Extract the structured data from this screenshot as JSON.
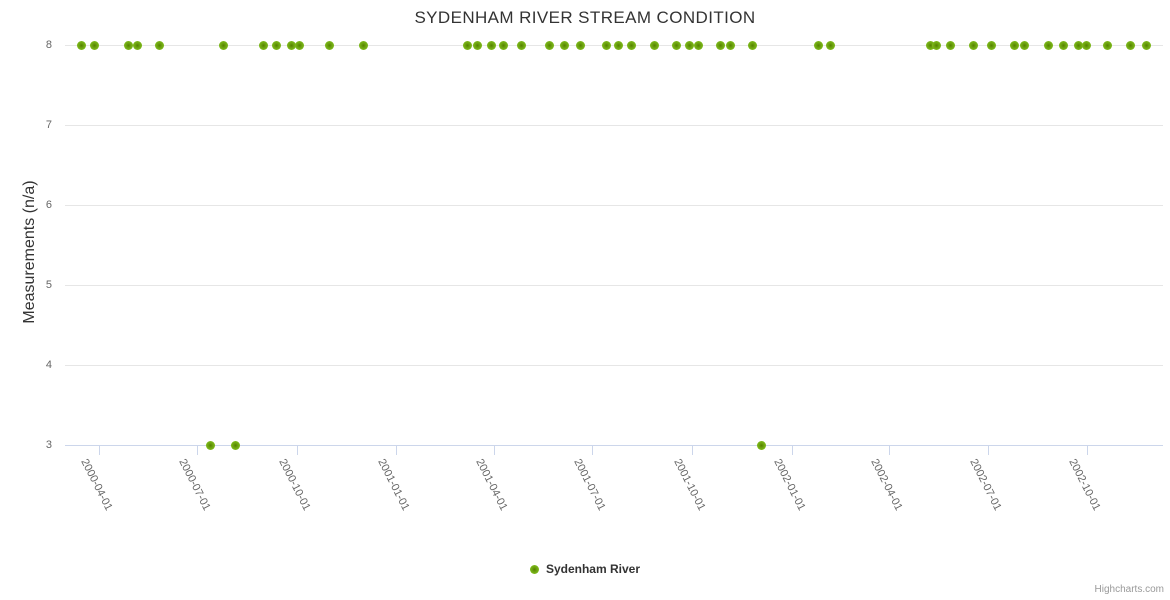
{
  "header": {
    "title": "SYDENHAM RIVER STREAM CONDITION"
  },
  "credit": {
    "label": "Highcharts.com"
  },
  "legend": {
    "items": [
      {
        "label": "Sydenham River"
      }
    ]
  },
  "colors": {
    "point_fill": "#7cb51e",
    "point_core": "#557f00",
    "gridline": "#e6e6e6",
    "axis_line": "#ccd6eb",
    "title_text": "#333333",
    "axis_label_text": "#666666",
    "legend_text": "#333333",
    "credit_text": "#999999"
  },
  "chart_data": {
    "type": "scatter",
    "title": "SYDENHAM RIVER STREAM CONDITION",
    "xlabel": "",
    "ylabel": "Measurements (n/a)",
    "legend_position": "bottom-center",
    "grid": {
      "horizontal": true,
      "vertical": false
    },
    "y_axis": {
      "min": 3,
      "max": 8,
      "ticks": [
        8,
        7,
        6,
        5,
        4,
        3
      ]
    },
    "x_axis": {
      "type": "datetime",
      "min": "2000-03-01",
      "max": "2002-12-10",
      "tick_labels": [
        "2000-04-01",
        "2000-07-01",
        "2000-10-01",
        "2001-01-01",
        "2001-04-01",
        "2001-07-01",
        "2001-10-01",
        "2002-01-01",
        "2002-04-01",
        "2002-07-01",
        "2002-10-01"
      ]
    },
    "series": [
      {
        "name": "Sydenham River",
        "color": "#7cb51e",
        "points": [
          [
            "2000-03-16",
            8
          ],
          [
            "2000-03-28",
            8
          ],
          [
            "2000-04-29",
            8
          ],
          [
            "2000-05-07",
            8
          ],
          [
            "2000-05-27",
            8
          ],
          [
            "2000-07-13",
            3
          ],
          [
            "2000-07-25",
            8
          ],
          [
            "2000-08-05",
            3
          ],
          [
            "2000-08-31",
            8
          ],
          [
            "2000-09-12",
            8
          ],
          [
            "2000-09-26",
            8
          ],
          [
            "2000-10-04",
            8
          ],
          [
            "2000-10-31",
            8
          ],
          [
            "2000-12-02",
            8
          ],
          [
            "2001-03-08",
            8
          ],
          [
            "2001-03-17",
            8
          ],
          [
            "2001-03-30",
            8
          ],
          [
            "2001-04-10",
            8
          ],
          [
            "2001-04-27",
            8
          ],
          [
            "2001-05-22",
            8
          ],
          [
            "2001-06-05",
            8
          ],
          [
            "2001-06-20",
            8
          ],
          [
            "2001-07-14",
            8
          ],
          [
            "2001-07-25",
            8
          ],
          [
            "2001-08-06",
            8
          ],
          [
            "2001-08-27",
            8
          ],
          [
            "2001-09-17",
            8
          ],
          [
            "2001-09-29",
            8
          ],
          [
            "2001-10-07",
            8
          ],
          [
            "2001-10-27",
            8
          ],
          [
            "2001-11-06",
            8
          ],
          [
            "2001-11-26",
            8
          ],
          [
            "2001-12-04",
            3
          ],
          [
            "2002-01-26",
            8
          ],
          [
            "2002-02-06",
            8
          ],
          [
            "2002-05-09",
            8
          ],
          [
            "2002-05-15",
            8
          ],
          [
            "2002-05-28",
            8
          ],
          [
            "2002-06-18",
            8
          ],
          [
            "2002-07-05",
            8
          ],
          [
            "2002-07-26",
            8
          ],
          [
            "2002-08-04",
            8
          ],
          [
            "2002-08-26",
            8
          ],
          [
            "2002-09-09",
            8
          ],
          [
            "2002-09-23",
            8
          ],
          [
            "2002-09-30",
            8
          ],
          [
            "2002-10-20",
            8
          ],
          [
            "2002-11-10",
            8
          ],
          [
            "2002-11-25",
            8
          ]
        ]
      }
    ]
  }
}
